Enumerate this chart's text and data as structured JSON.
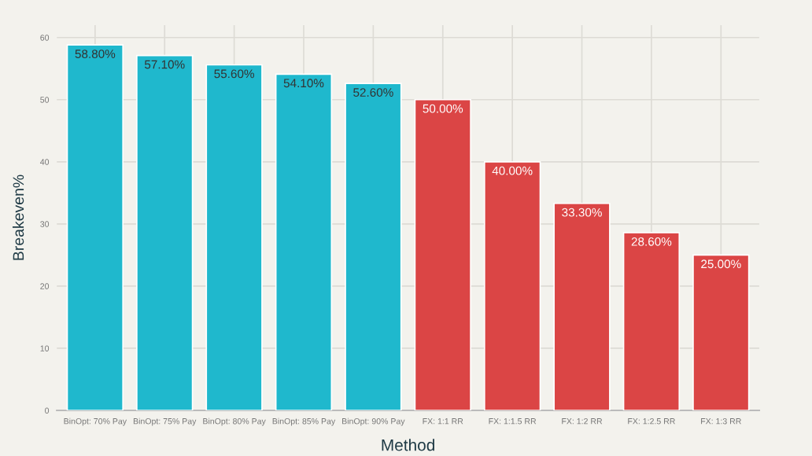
{
  "chart_data": {
    "type": "bar",
    "xlabel": "Method",
    "ylabel": "Breakeven%",
    "categories": [
      "BinOpt: 70% Pay",
      "BinOpt: 75% Pay",
      "BinOpt: 80% Pay",
      "BinOpt: 85% Pay",
      "BinOpt: 90% Pay",
      "FX: 1:1 RR",
      "FX: 1:1.5 RR",
      "FX: 1:2 RR",
      "FX: 1:2.5 RR",
      "FX: 1:3 RR"
    ],
    "values": [
      58.8,
      57.1,
      55.6,
      54.1,
      52.6,
      50.0,
      40.0,
      33.3,
      28.6,
      25.0
    ],
    "colors": [
      "#1fb8cd",
      "#1fb8cd",
      "#1fb8cd",
      "#1fb8cd",
      "#1fb8cd",
      "#db4545",
      "#db4545",
      "#db4545",
      "#db4545",
      "#db4545"
    ],
    "value_labels": [
      "58.80%",
      "57.10%",
      "55.60%",
      "54.10%",
      "52.60%",
      "50.00%",
      "40.00%",
      "33.30%",
      "28.60%",
      "25.00%"
    ],
    "ylim": [
      0,
      62
    ],
    "yticks": [
      0,
      10,
      20,
      30,
      40,
      50,
      60
    ],
    "grid": true,
    "legend": false
  }
}
